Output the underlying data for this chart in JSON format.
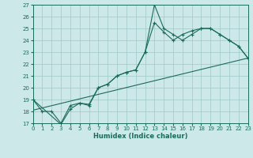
{
  "xlabel": "Humidex (Indice chaleur)",
  "background_color": "#cce8e8",
  "grid_color": "#9ec8c8",
  "line_color": "#1a6b5a",
  "xlim": [
    0,
    23
  ],
  "ylim": [
    17,
    27
  ],
  "xticks": [
    0,
    1,
    2,
    3,
    4,
    5,
    6,
    7,
    8,
    9,
    10,
    11,
    12,
    13,
    14,
    15,
    16,
    17,
    18,
    19,
    20,
    21,
    22,
    23
  ],
  "yticks": [
    17,
    18,
    19,
    20,
    21,
    22,
    23,
    24,
    25,
    26,
    27
  ],
  "line1_x": [
    0,
    1,
    2,
    3,
    4,
    5,
    6,
    7,
    8,
    9,
    10,
    11,
    12,
    13,
    14,
    15,
    16,
    17,
    18,
    19,
    20,
    21,
    22,
    23
  ],
  "line1_y": [
    19.0,
    18.0,
    18.0,
    17.0,
    18.5,
    18.7,
    18.5,
    20.0,
    20.3,
    21.0,
    21.3,
    21.5,
    23.0,
    27.0,
    25.0,
    24.5,
    24.0,
    24.5,
    25.0,
    25.0,
    24.5,
    24.0,
    23.5,
    22.5
  ],
  "line2_x": [
    0,
    3,
    4,
    5,
    6,
    7,
    8,
    9,
    10,
    11,
    12,
    13,
    14,
    15,
    16,
    17,
    18,
    19,
    20,
    21,
    22,
    23
  ],
  "line2_y": [
    19.0,
    16.9,
    18.2,
    18.7,
    18.6,
    20.0,
    20.3,
    21.0,
    21.3,
    21.5,
    23.0,
    25.5,
    24.7,
    24.0,
    24.5,
    24.8,
    25.0,
    25.0,
    24.5,
    24.0,
    23.5,
    22.5
  ],
  "line3_x": [
    0,
    23
  ],
  "line3_y": [
    18.1,
    22.5
  ]
}
